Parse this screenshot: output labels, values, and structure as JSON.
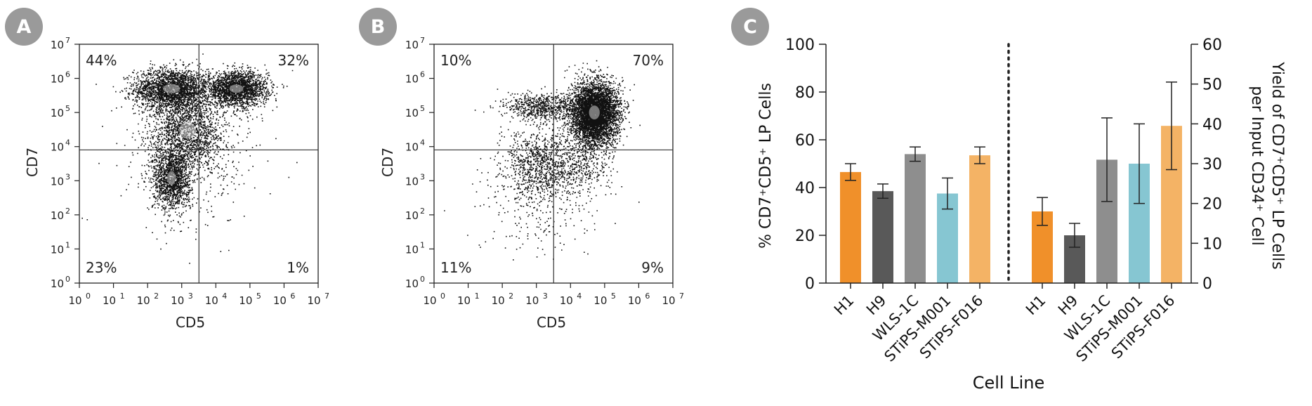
{
  "panels": {
    "a": {
      "letter": "A"
    },
    "b": {
      "letter": "B"
    },
    "c": {
      "letter": "C"
    }
  },
  "colors": {
    "badge": "#9a9a9a",
    "H1": "#f0902a",
    "H9": "#595959",
    "WLS-1C": "#8e8e8e",
    "STiPS-M001": "#86c6d2",
    "STiPS-F016": "#f4b365",
    "points": "#111111",
    "density_core": "#cfcfcf"
  },
  "chart_data": [
    {
      "type": "scatter",
      "panel": "A",
      "xlabel": "CD5",
      "ylabel": "CD7",
      "x_scale": "log",
      "y_scale": "log",
      "xlim": [
        1,
        10000000
      ],
      "ylim": [
        1,
        10000000
      ],
      "tick_bases": [
        "10",
        "10",
        "10",
        "10",
        "10",
        "10",
        "10",
        "10"
      ],
      "tick_exps": [
        "0",
        "1",
        "2",
        "3",
        "4",
        "5",
        "6",
        "7"
      ],
      "gate": {
        "x": 3200,
        "y": 8000
      },
      "quadrants": {
        "upper_left": "44%",
        "upper_right": "32%",
        "lower_left": "23%",
        "lower_right": "1%"
      },
      "populations": [
        {
          "x": 500,
          "y": 500000,
          "count": 2300,
          "spread_x": 0.55,
          "spread_y": 0.3
        },
        {
          "x": 40000,
          "y": 500000,
          "count": 2100,
          "spread_x": 0.45,
          "spread_y": 0.25
        },
        {
          "x": 500,
          "y": 1200,
          "count": 1500,
          "spread_x": 0.28,
          "spread_y": 0.45
        },
        {
          "x": 1500,
          "y": 30000,
          "count": 1600,
          "spread_x": 0.55,
          "spread_y": 0.55
        },
        {
          "x": 2000,
          "y": 3000,
          "count": 350,
          "spread_x": 1.0,
          "spread_y": 1.0
        }
      ]
    },
    {
      "type": "scatter",
      "panel": "B",
      "xlabel": "CD5",
      "ylabel": "CD7",
      "x_scale": "log",
      "y_scale": "log",
      "xlim": [
        1,
        10000000
      ],
      "ylim": [
        1,
        10000000
      ],
      "tick_bases": [
        "10",
        "10",
        "10",
        "10",
        "10",
        "10",
        "10",
        "10"
      ],
      "tick_exps": [
        "0",
        "1",
        "2",
        "3",
        "4",
        "5",
        "6",
        "7"
      ],
      "gate": {
        "x": 3200,
        "y": 8000
      },
      "quadrants": {
        "upper_left": "10%",
        "upper_right": "70%",
        "lower_left": "11%",
        "lower_right": "9%"
      },
      "populations": [
        {
          "x": 50000,
          "y": 100000,
          "count": 4800,
          "spread_x": 0.35,
          "spread_y": 0.45
        },
        {
          "x": 1500,
          "y": 150000,
          "count": 700,
          "spread_x": 0.6,
          "spread_y": 0.2
        },
        {
          "x": 1200,
          "y": 3000,
          "count": 900,
          "spread_x": 0.5,
          "spread_y": 0.55
        },
        {
          "x": 20000,
          "y": 3000,
          "count": 450,
          "spread_x": 0.5,
          "spread_y": 0.5
        },
        {
          "x": 800,
          "y": 300,
          "count": 250,
          "spread_x": 0.9,
          "spread_y": 0.8
        }
      ]
    },
    {
      "type": "bar",
      "panel": "C",
      "xlabel": "Cell Line",
      "ylabel_left": "% CD7⁺CD5⁺ LP Cells",
      "ylabel_right_line1": "Yield of CD7⁺CD5⁺ LP Cells",
      "ylabel_right_line2": "per Input CD34⁺ Cell",
      "ylim_left": [
        0,
        100
      ],
      "ylim_right": [
        0,
        60
      ],
      "left_ticks": [
        "0",
        "20",
        "40",
        "60",
        "80",
        "100"
      ],
      "right_ticks": [
        "0",
        "10",
        "20",
        "30",
        "40",
        "50",
        "60"
      ],
      "groups": [
        {
          "axis": "left",
          "categories": [
            "H1",
            "H9",
            "WLS-1C",
            "STiPS-M001",
            "STiPS-F016"
          ],
          "values": [
            46.5,
            38.5,
            54,
            37.5,
            53.5
          ],
          "errors": [
            3.5,
            3,
            3,
            6.5,
            3.5
          ]
        },
        {
          "axis": "right",
          "categories": [
            "H1",
            "H9",
            "WLS-1C",
            "STiPS-M001",
            "STiPS-F016"
          ],
          "values": [
            18,
            12,
            31,
            30,
            39.5
          ],
          "errors": [
            3.5,
            3,
            10.5,
            10,
            11
          ]
        }
      ]
    }
  ]
}
